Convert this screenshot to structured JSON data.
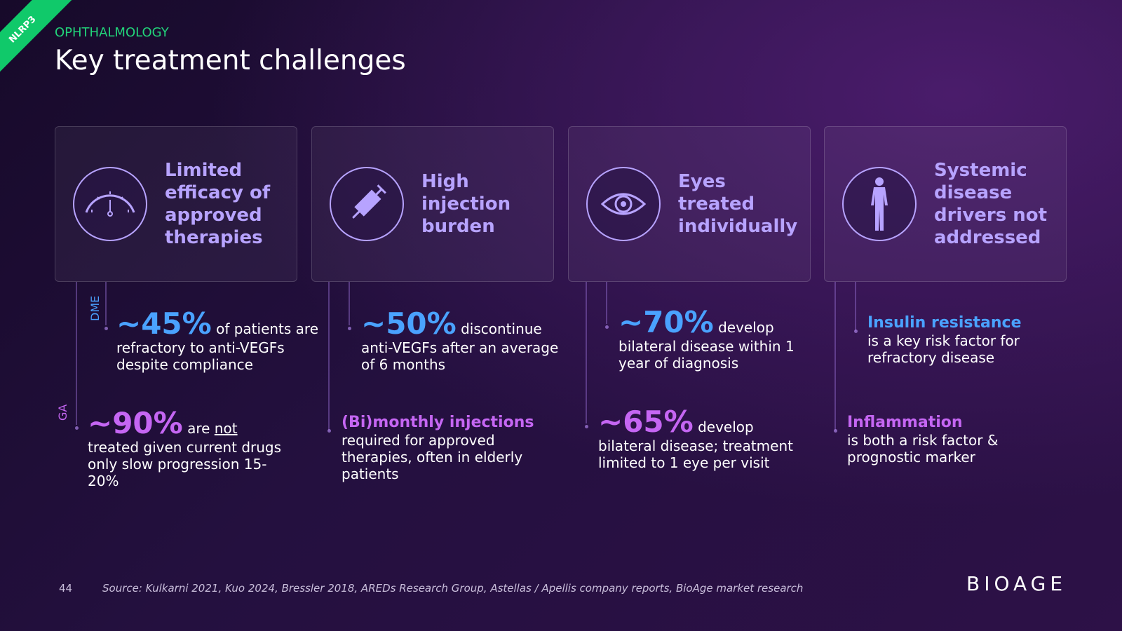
{
  "badge": "NLRP3",
  "header": {
    "kicker": "OPHTHALMOLOGY",
    "title": "Key treatment challenges"
  },
  "cards": [
    {
      "title": "Limited efficacy of approved therapies",
      "notes": [
        {
          "tag": "DME",
          "highlight": "~45%",
          "text": "of patients are refractory to anti-VEGFs despite compliance"
        },
        {
          "tag": "GA",
          "highlight": "~90%",
          "text": "are",
          "emphasis": "not",
          "after": "treated given current drugs only slow progression 15-20%"
        }
      ]
    },
    {
      "title": "High injection burden",
      "notes": [
        {
          "highlight": "~50%",
          "text": "discontinue anti-VEGFs after an average of 6 months"
        },
        {
          "highlight": "(Bi)monthly injections",
          "text": "required for approved therapies, often in elderly patients"
        }
      ]
    },
    {
      "title": "Eyes treated individually",
      "notes": [
        {
          "highlight": "~70%",
          "text": "develop bilateral disease within 1 year of diagnosis"
        },
        {
          "highlight": "~65%",
          "text": "develop bilateral disease; treatment limited to 1 eye per visit"
        }
      ]
    },
    {
      "title": "Systemic disease drivers not addressed",
      "notes": [
        {
          "highlight": "Insulin resistance",
          "text": "is a key risk factor for refractory disease"
        },
        {
          "highlight": "Inflammation",
          "text": "is both a risk factor & prognostic marker"
        }
      ]
    }
  ],
  "footer": {
    "page": "44",
    "source": "Source: Kulkarni 2021, Kuo 2024, Bressler 2018, AREDs Research Group, Astellas / Apellis company reports, BioAge market research",
    "logo": "BIOAGE"
  }
}
